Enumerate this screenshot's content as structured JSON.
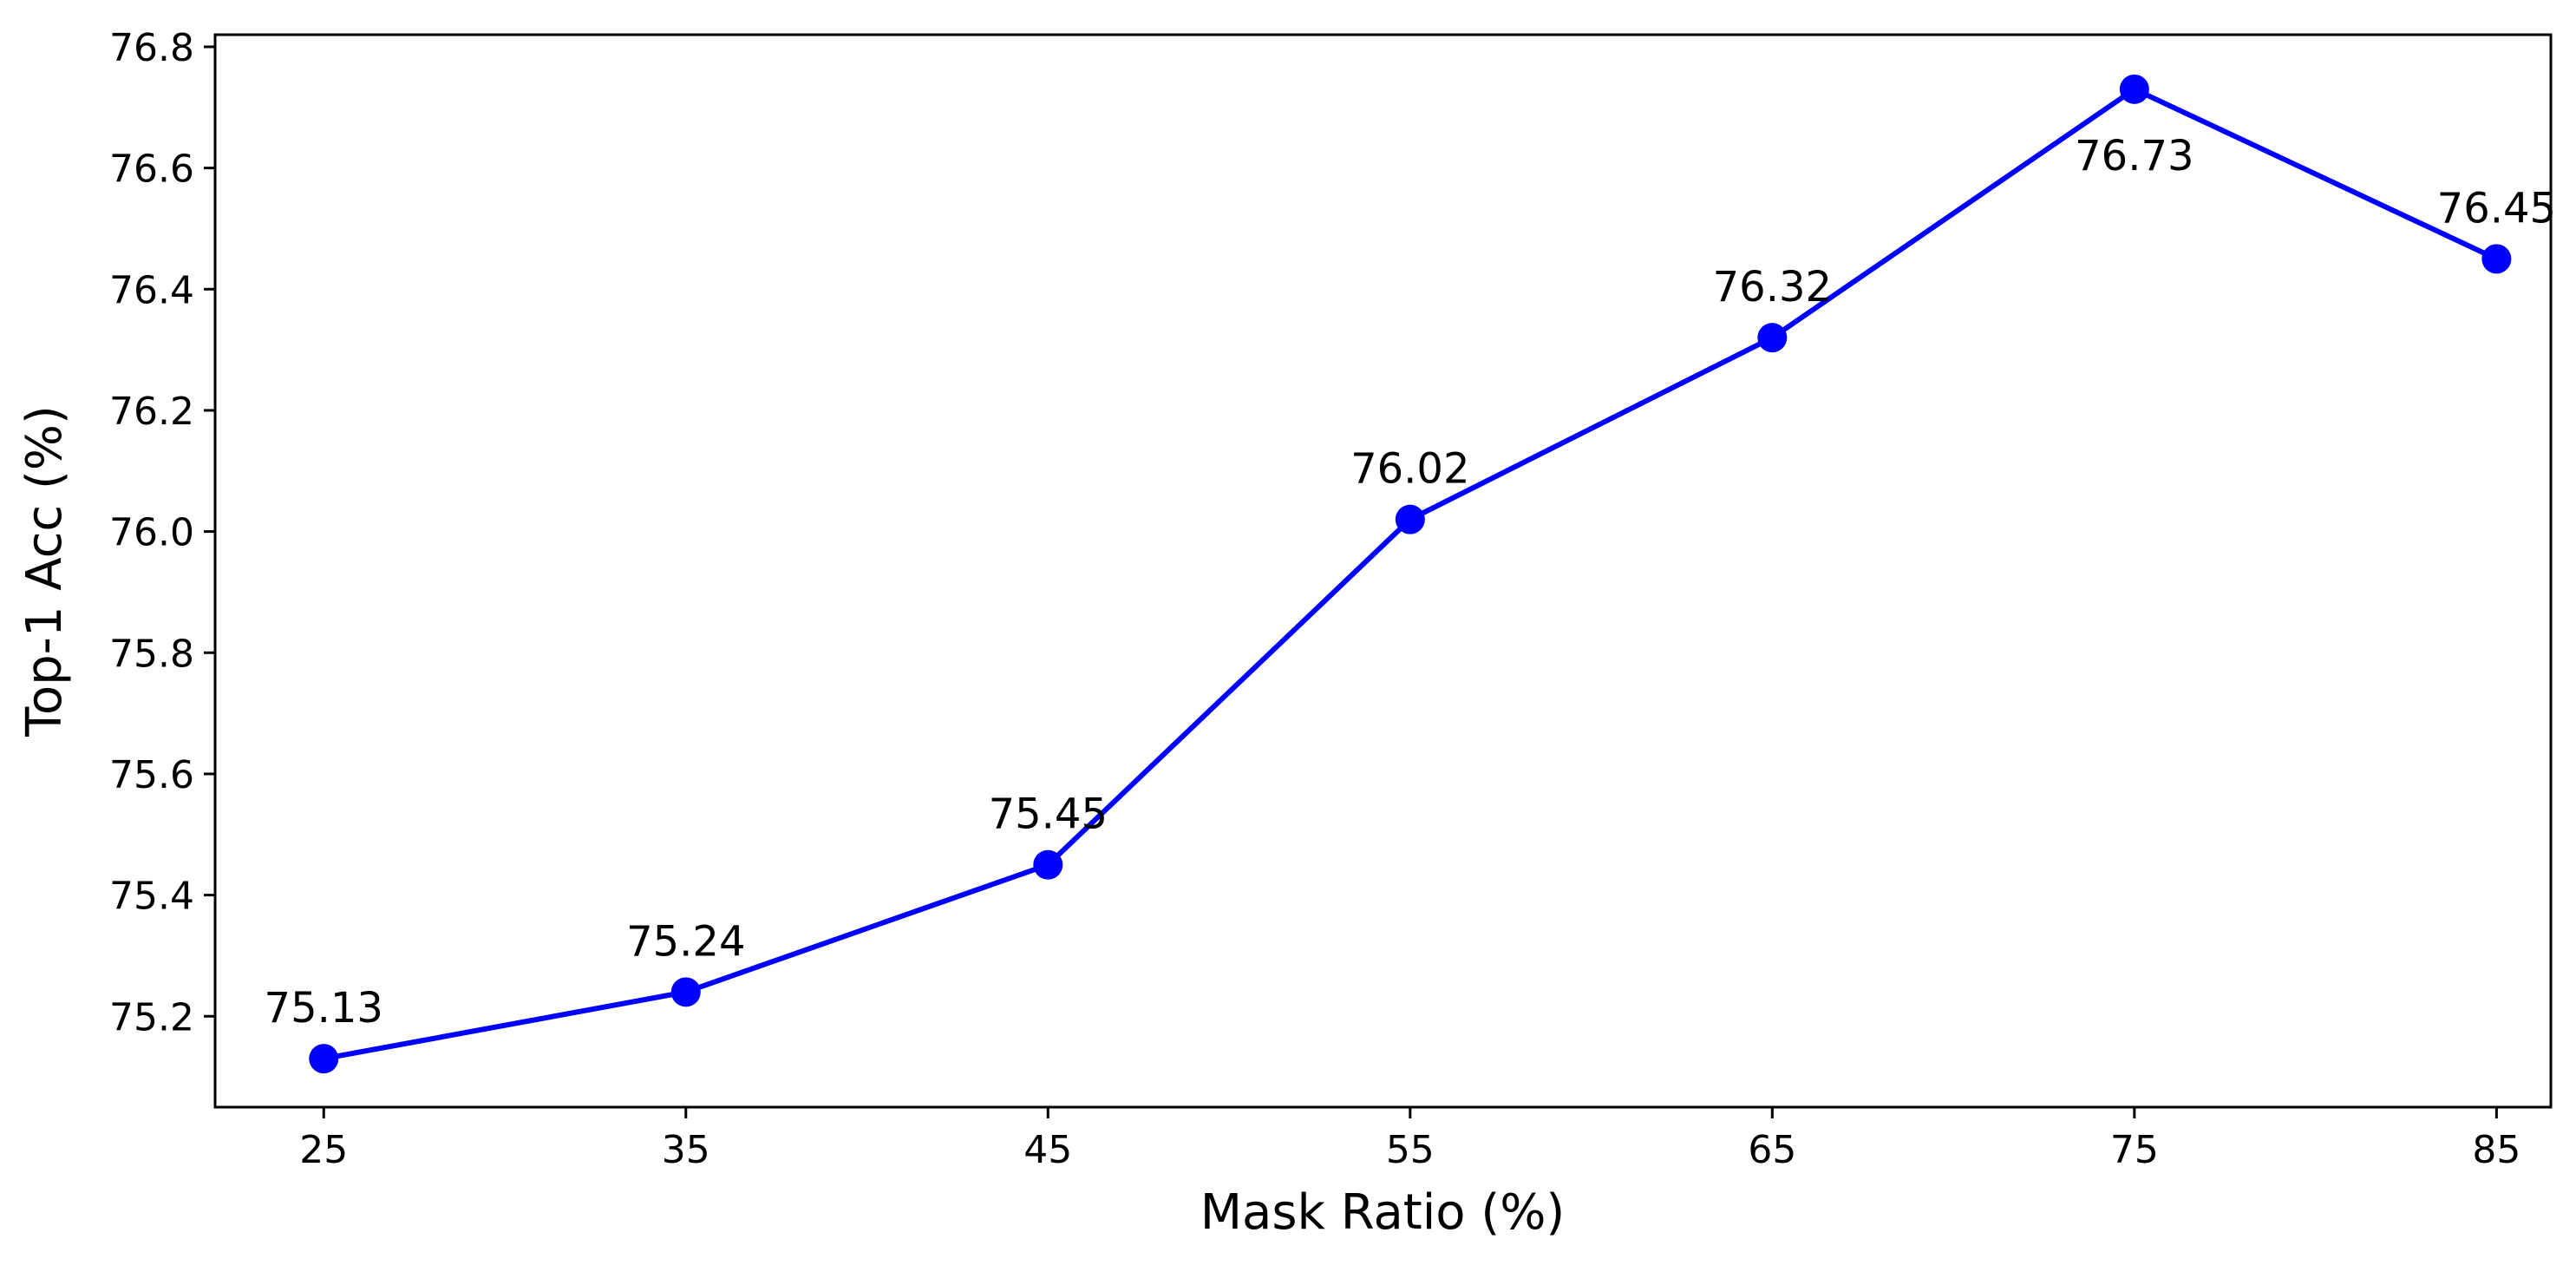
{
  "chart_data": {
    "type": "line",
    "x": [
      25,
      35,
      45,
      55,
      65,
      75,
      85
    ],
    "series": [
      {
        "values": [
          75.13,
          75.24,
          75.45,
          76.02,
          76.32,
          76.73,
          76.45
        ],
        "color": "#0000ff",
        "marker": "circle"
      }
    ],
    "data_labels": [
      "75.13",
      "75.24",
      "75.45",
      "76.02",
      "76.32",
      "76.73",
      "76.45"
    ],
    "xlabel": "Mask Ratio (%)",
    "ylabel": "Top-1 Acc (%)",
    "xticks": [
      "25",
      "35",
      "45",
      "55",
      "65",
      "75",
      "85"
    ],
    "yticks": [
      "75.2",
      "75.4",
      "75.6",
      "75.8",
      "76.0",
      "76.2",
      "76.4",
      "76.6",
      "76.8"
    ],
    "ytick_values": [
      75.2,
      75.4,
      75.6,
      75.8,
      76.0,
      76.2,
      76.4,
      76.6,
      76.8
    ],
    "xlim": [
      22,
      86.5
    ],
    "ylim": [
      75.05,
      76.82
    ],
    "grid": false,
    "legend": false
  }
}
